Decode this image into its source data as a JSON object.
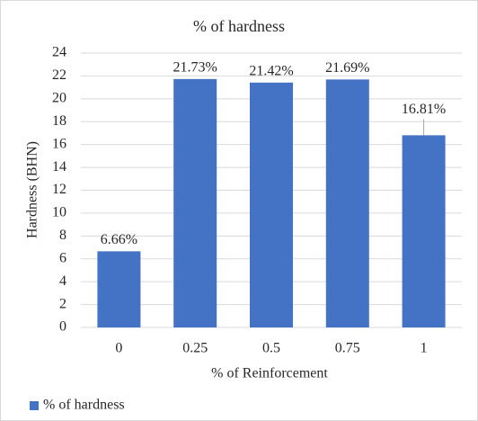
{
  "chart_data": {
    "type": "bar",
    "title": "% of hardness",
    "x_label": "% of Reinforcement",
    "y_label": "Hardness (BHN)",
    "categories": [
      "0",
      "0.25",
      "0.5",
      "0.75",
      "1"
    ],
    "series": [
      {
        "name": "% of hardness",
        "color": "#4472c4",
        "values": [
          6.66,
          21.73,
          21.42,
          21.69,
          16.81
        ],
        "value_labels": [
          "6.66%",
          "21.73%",
          "21.42%",
          "21.69%",
          "16.81%"
        ]
      }
    ],
    "ylim": [
      0,
      24
    ],
    "yticks": [
      0,
      2,
      4,
      6,
      8,
      10,
      12,
      14,
      16,
      18,
      20,
      22,
      24
    ],
    "grid": true,
    "legend": "bottom-left"
  }
}
